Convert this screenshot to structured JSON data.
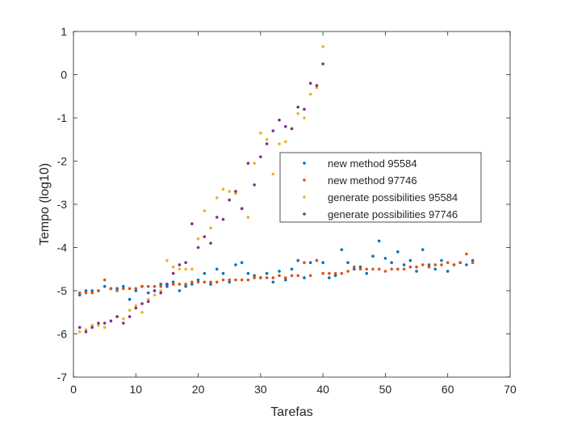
{
  "chart_data": {
    "type": "scatter",
    "title": "",
    "xlabel": "Tarefas",
    "ylabel": "Tempo (log10)",
    "xlim": [
      0,
      70
    ],
    "ylim": [
      -7,
      1
    ],
    "xticks": [
      0,
      10,
      20,
      30,
      40,
      50,
      60,
      70
    ],
    "yticks": [
      -7,
      -6,
      -5,
      -4,
      -3,
      -2,
      -1,
      0,
      1
    ],
    "grid": false,
    "legend_position": "center-right",
    "series": [
      {
        "name": "new method 95584",
        "color": "#0072BD",
        "x": [
          1,
          2,
          3,
          4,
          5,
          6,
          7,
          8,
          9,
          10,
          11,
          12,
          13,
          14,
          15,
          16,
          17,
          18,
          19,
          20,
          21,
          22,
          23,
          24,
          25,
          26,
          27,
          28,
          29,
          30,
          31,
          32,
          33,
          34,
          35,
          36,
          37,
          38,
          39,
          40,
          41,
          42,
          43,
          44,
          45,
          46,
          47,
          48,
          49,
          50,
          51,
          52,
          53,
          54,
          55,
          56,
          57,
          58,
          59,
          60,
          61,
          62,
          63,
          64
        ],
        "y": [
          -5.1,
          -5.0,
          -5.0,
          -5.0,
          -4.9,
          -4.95,
          -4.95,
          -4.9,
          -5.2,
          -5.0,
          -4.9,
          -5.05,
          -5.0,
          -4.85,
          -4.9,
          -4.8,
          -5.0,
          -4.9,
          -4.85,
          -4.75,
          -4.6,
          -4.85,
          -4.5,
          -4.6,
          -4.8,
          -4.4,
          -4.35,
          -4.6,
          -4.65,
          -4.7,
          -4.6,
          -4.8,
          -4.55,
          -4.75,
          -4.5,
          -4.3,
          -4.7,
          -4.35,
          -4.3,
          -4.35,
          -4.7,
          -4.65,
          -4.05,
          -4.35,
          -4.5,
          -4.45,
          -4.6,
          -4.2,
          -3.85,
          -4.25,
          -4.35,
          -4.1,
          -4.4,
          -4.3,
          -4.55,
          -4.05,
          -4.4,
          -4.5,
          -4.3,
          -4.55,
          -4.4,
          -4.35,
          -4.4,
          -4.3
        ]
      },
      {
        "name": "new method 97746",
        "color": "#D95319",
        "x": [
          1,
          2,
          3,
          4,
          5,
          6,
          7,
          8,
          9,
          10,
          11,
          12,
          13,
          14,
          15,
          16,
          17,
          18,
          19,
          20,
          21,
          22,
          23,
          24,
          25,
          26,
          27,
          28,
          29,
          30,
          31,
          32,
          33,
          34,
          35,
          36,
          37,
          38,
          39,
          40,
          41,
          42,
          43,
          44,
          45,
          46,
          47,
          48,
          49,
          50,
          51,
          52,
          53,
          54,
          55,
          56,
          57,
          58,
          59,
          60,
          61,
          62,
          63,
          64
        ],
        "y": [
          -5.05,
          -5.05,
          -5.05,
          -5.0,
          -4.75,
          -4.95,
          -5.0,
          -4.95,
          -4.95,
          -4.95,
          -4.9,
          -4.9,
          -4.9,
          -4.9,
          -4.85,
          -4.85,
          -4.85,
          -4.85,
          -4.8,
          -4.8,
          -4.8,
          -4.8,
          -4.8,
          -4.75,
          -4.75,
          -4.75,
          -4.75,
          -4.75,
          -4.7,
          -4.7,
          -4.7,
          -4.7,
          -4.65,
          -4.7,
          -4.65,
          -4.65,
          -4.35,
          -4.65,
          -4.3,
          -4.6,
          -4.6,
          -4.6,
          -4.6,
          -4.55,
          -4.45,
          -4.5,
          -4.5,
          -4.5,
          -4.5,
          -4.55,
          -4.5,
          -4.5,
          -4.5,
          -4.45,
          -4.45,
          -4.4,
          -4.45,
          -4.4,
          -4.4,
          -4.35,
          -4.4,
          -4.35,
          -4.15,
          -4.35
        ]
      },
      {
        "name": "generate possibilities 95584",
        "color": "#EDB120",
        "x": [
          1,
          2,
          3,
          4,
          5,
          6,
          7,
          8,
          9,
          10,
          11,
          12,
          13,
          14,
          15,
          16,
          17,
          18,
          19,
          20,
          21,
          22,
          23,
          24,
          25,
          26,
          27,
          28,
          29,
          30,
          31,
          32,
          33,
          34,
          35,
          36,
          37,
          38,
          39,
          40
        ],
        "y": [
          -5.95,
          -5.9,
          -5.8,
          -5.8,
          -5.85,
          -5.7,
          -5.6,
          -5.65,
          -5.45,
          -5.35,
          -5.5,
          -5.2,
          -5.1,
          -5.0,
          -4.3,
          -4.45,
          -4.5,
          -4.5,
          -4.5,
          -3.8,
          -3.15,
          -3.55,
          -2.85,
          -2.65,
          -2.7,
          -2.75,
          -3.1,
          -3.3,
          -2.05,
          -1.35,
          -1.5,
          -2.3,
          -1.6,
          -1.55,
          -1.25,
          -0.9,
          -1.0,
          -0.45,
          -0.3,
          0.65
        ]
      },
      {
        "name": "generate possibilities 97746",
        "color": "#7E2F8E",
        "x": [
          1,
          2,
          3,
          4,
          5,
          6,
          7,
          8,
          9,
          10,
          11,
          12,
          13,
          14,
          15,
          16,
          17,
          18,
          19,
          20,
          21,
          22,
          23,
          24,
          25,
          26,
          27,
          28,
          29,
          30,
          31,
          32,
          33,
          34,
          35,
          36,
          37,
          38,
          39,
          40
        ],
        "y": [
          -5.85,
          -5.95,
          -5.85,
          -5.75,
          -5.75,
          -5.7,
          -5.6,
          -5.75,
          -5.6,
          -5.4,
          -5.3,
          -5.25,
          -5.0,
          -5.05,
          -4.85,
          -4.6,
          -4.4,
          -4.35,
          -3.45,
          -4.0,
          -3.75,
          -3.9,
          -3.3,
          -3.35,
          -2.9,
          -2.7,
          -3.1,
          -2.05,
          -2.55,
          -1.9,
          -1.6,
          -1.3,
          -1.05,
          -1.2,
          -1.25,
          -0.75,
          -0.8,
          -0.2,
          -0.25,
          0.25
        ]
      }
    ]
  }
}
